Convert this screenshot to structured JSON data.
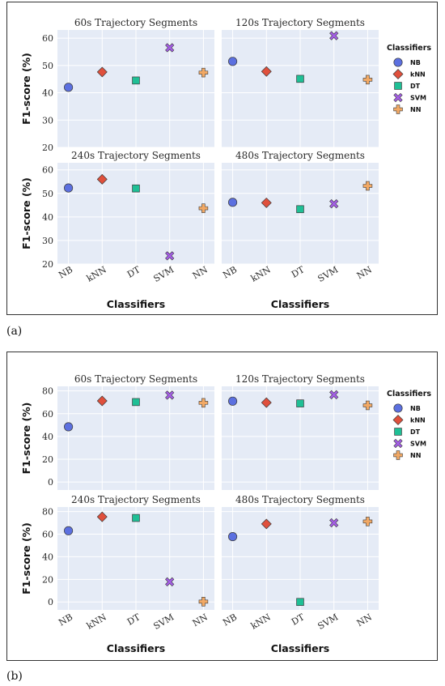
{
  "legend": {
    "title": "Classifiers",
    "entries": [
      {
        "label": "NB",
        "marker": "circle",
        "color": "#5c70e0"
      },
      {
        "label": "kNN",
        "marker": "diamond",
        "color": "#e0503c"
      },
      {
        "label": "DT",
        "marker": "square",
        "color": "#1fbf95"
      },
      {
        "label": "SVM",
        "marker": "x",
        "color": "#a45ee6"
      },
      {
        "label": "NN",
        "marker": "plus",
        "color": "#f2a965"
      }
    ]
  },
  "chart_data": [
    {
      "type": "scatter",
      "figure_label": "(a)",
      "categories": [
        "NB",
        "kNN",
        "DT",
        "SVM",
        "NN"
      ],
      "xlabel": "Classifiers",
      "ylabel": "F1-score (%)",
      "ylim": [
        20,
        63
      ],
      "yticks": [
        20,
        30,
        40,
        50,
        60
      ],
      "grid": true,
      "legend_position": "right",
      "panels": [
        {
          "title": "60s Trajectory Segments",
          "values": [
            42.0,
            47.6,
            44.5,
            56.5,
            47.4
          ]
        },
        {
          "title": "120s Trajectory Segments",
          "values": [
            51.5,
            47.8,
            45.1,
            60.9,
            44.8
          ]
        },
        {
          "title": "240s Trajectory Segments",
          "values": [
            52.3,
            56.0,
            52.1,
            23.5,
            43.7
          ]
        },
        {
          "title": "480s Trajectory Segments",
          "values": [
            46.2,
            46.0,
            43.3,
            45.6,
            53.2
          ]
        }
      ]
    },
    {
      "type": "scatter",
      "figure_label": "(b)",
      "categories": [
        "NB",
        "kNN",
        "DT",
        "SVM",
        "NN"
      ],
      "xlabel": "Classifiers",
      "ylabel": "F1-score (%)",
      "ylim": [
        -7,
        84
      ],
      "yticks": [
        0,
        20,
        40,
        60,
        80
      ],
      "grid": true,
      "legend_position": "right",
      "panels": [
        {
          "title": "60s Trajectory Segments",
          "values": [
            48.5,
            71.2,
            70.2,
            76.3,
            69.5
          ]
        },
        {
          "title": "120s Trajectory Segments",
          "values": [
            71.0,
            69.7,
            69.0,
            76.6,
            67.3
          ]
        },
        {
          "title": "240s Trajectory Segments",
          "values": [
            63.0,
            75.3,
            74.3,
            17.8,
            0.3
          ]
        },
        {
          "title": "480s Trajectory Segments",
          "values": [
            57.8,
            69.0,
            0.0,
            70.0,
            71.2
          ]
        }
      ]
    }
  ]
}
